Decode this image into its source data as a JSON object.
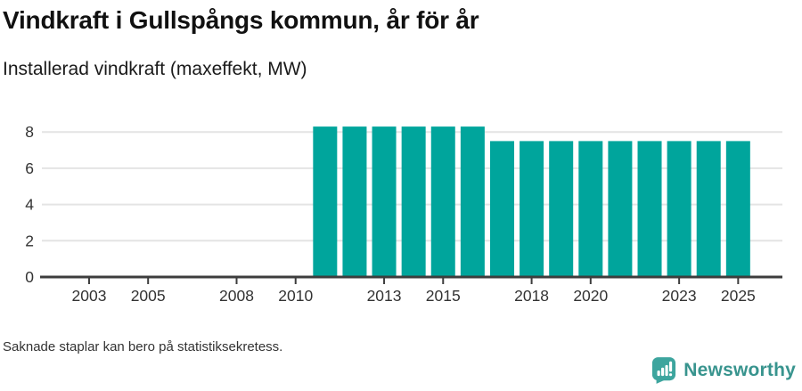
{
  "header": {
    "title_note": "bound from chart_data"
  },
  "footnote": {
    "text": "Saknade staplar kan bero på statistiksekretess."
  },
  "branding": {
    "name": "Newsworthy",
    "icon": "newsworthy-chart-bubble-icon",
    "icon_color": "#3da59e",
    "text_color": "#38948e"
  },
  "chart_data": {
    "type": "bar",
    "title": "Vindkraft i Gullspångs kommun, år för år",
    "subtitle": "Installerad vindkraft (maxeffekt, MW)",
    "x": [
      2002,
      2003,
      2004,
      2005,
      2006,
      2007,
      2008,
      2009,
      2010,
      2011,
      2012,
      2013,
      2014,
      2015,
      2016,
      2017,
      2018,
      2019,
      2020,
      2021,
      2022,
      2023,
      2024,
      2025
    ],
    "values": [
      null,
      null,
      null,
      null,
      null,
      null,
      null,
      null,
      null,
      8.3,
      8.3,
      8.3,
      8.3,
      8.3,
      8.3,
      7.5,
      7.5,
      7.5,
      7.5,
      7.5,
      7.5,
      7.5,
      7.5,
      7.5
    ],
    "x_ticks": [
      2003,
      2005,
      2008,
      2010,
      2013,
      2015,
      2018,
      2020,
      2023,
      2025
    ],
    "y_ticks": [
      0,
      2,
      4,
      6,
      8
    ],
    "xlim": [
      2001.4,
      2026.5
    ],
    "ylim": [
      0,
      8.65
    ],
    "xlabel": "",
    "ylabel": "",
    "grid": "horizontal",
    "legend": "none",
    "bar_color": "#00a59c",
    "grid_color": "#e4e4e4",
    "axis_color": "#3d3d3d",
    "tick_label_color": "#333333"
  }
}
